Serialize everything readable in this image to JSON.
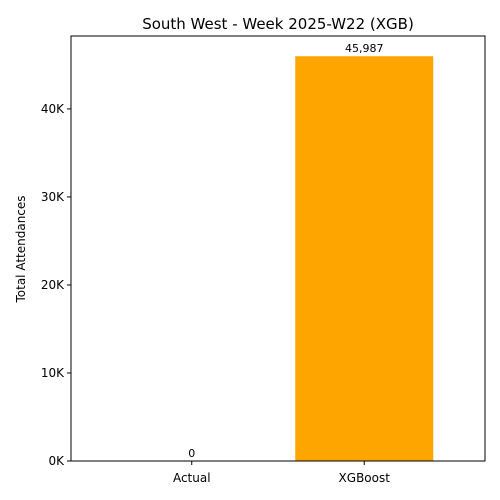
{
  "chart_data": {
    "type": "bar",
    "title": "South West - Week 2025-W22 (XGB)",
    "xlabel": "",
    "ylabel": "Total Attendances",
    "categories": [
      "Actual",
      "XGBoost"
    ],
    "values": [
      0,
      45987
    ],
    "value_labels": [
      "0",
      "45,987"
    ],
    "ylim": [
      0,
      48286
    ],
    "yticks": [
      0,
      10000,
      20000,
      30000,
      40000
    ],
    "ytick_labels": [
      "0K",
      "10K",
      "20K",
      "30K",
      "40K"
    ],
    "bar_colors": [
      "#1f77b4",
      "#ffa500"
    ],
    "grid": false,
    "legend": "none"
  }
}
